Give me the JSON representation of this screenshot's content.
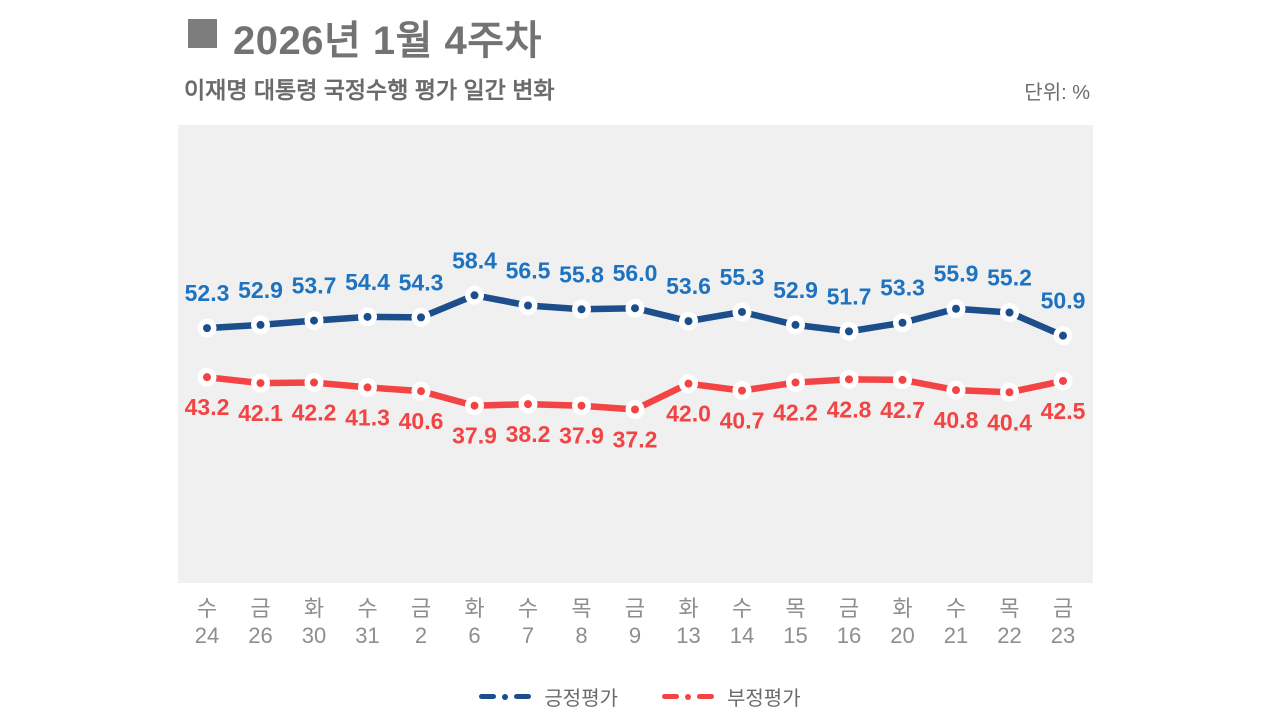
{
  "header": {
    "title": "2026년 1월 4주차",
    "subtitle": "이재명 대통령 국정수행 평가 일간 변화",
    "unit": "단위: %"
  },
  "colors": {
    "positive_line": "#1d4e8c",
    "positive_label": "#1d73c0",
    "negative_line": "#f24444",
    "negative_label": "#f24444",
    "plot_background": "#f0f0f0",
    "title_gray": "#737373",
    "axis_gray": "#8e8e8e"
  },
  "chart_data": {
    "type": "line",
    "title": "이재명 대통령 국정수행 평가 일간 변화",
    "unit": "%",
    "grid": false,
    "legend_position": "bottom",
    "ylim": [
      5,
      90
    ],
    "categories": [
      {
        "day": "수",
        "date": "24"
      },
      {
        "day": "금",
        "date": "26"
      },
      {
        "day": "화",
        "date": "30"
      },
      {
        "day": "수",
        "date": "31"
      },
      {
        "day": "금",
        "date": "2"
      },
      {
        "day": "화",
        "date": "6"
      },
      {
        "day": "수",
        "date": "7"
      },
      {
        "day": "목",
        "date": "8"
      },
      {
        "day": "금",
        "date": "9"
      },
      {
        "day": "화",
        "date": "13"
      },
      {
        "day": "수",
        "date": "14"
      },
      {
        "day": "목",
        "date": "15"
      },
      {
        "day": "금",
        "date": "16"
      },
      {
        "day": "화",
        "date": "20"
      },
      {
        "day": "수",
        "date": "21"
      },
      {
        "day": "목",
        "date": "22"
      },
      {
        "day": "금",
        "date": "23"
      }
    ],
    "series": [
      {
        "name": "긍정평가",
        "values": [
          52.3,
          52.9,
          53.7,
          54.4,
          54.3,
          58.4,
          56.5,
          55.8,
          56.0,
          53.6,
          55.3,
          52.9,
          51.7,
          53.3,
          55.9,
          55.2,
          50.9
        ],
        "line_color": "#1d4e8c",
        "label_color": "#1d73c0",
        "label_side": "above"
      },
      {
        "name": "부정평가",
        "values": [
          43.2,
          42.1,
          42.2,
          41.3,
          40.6,
          37.9,
          38.2,
          37.9,
          37.2,
          42.0,
          40.7,
          42.2,
          42.8,
          42.7,
          40.8,
          40.4,
          42.5
        ],
        "line_color": "#f24444",
        "label_color": "#f24444",
        "label_side": "below"
      }
    ]
  }
}
